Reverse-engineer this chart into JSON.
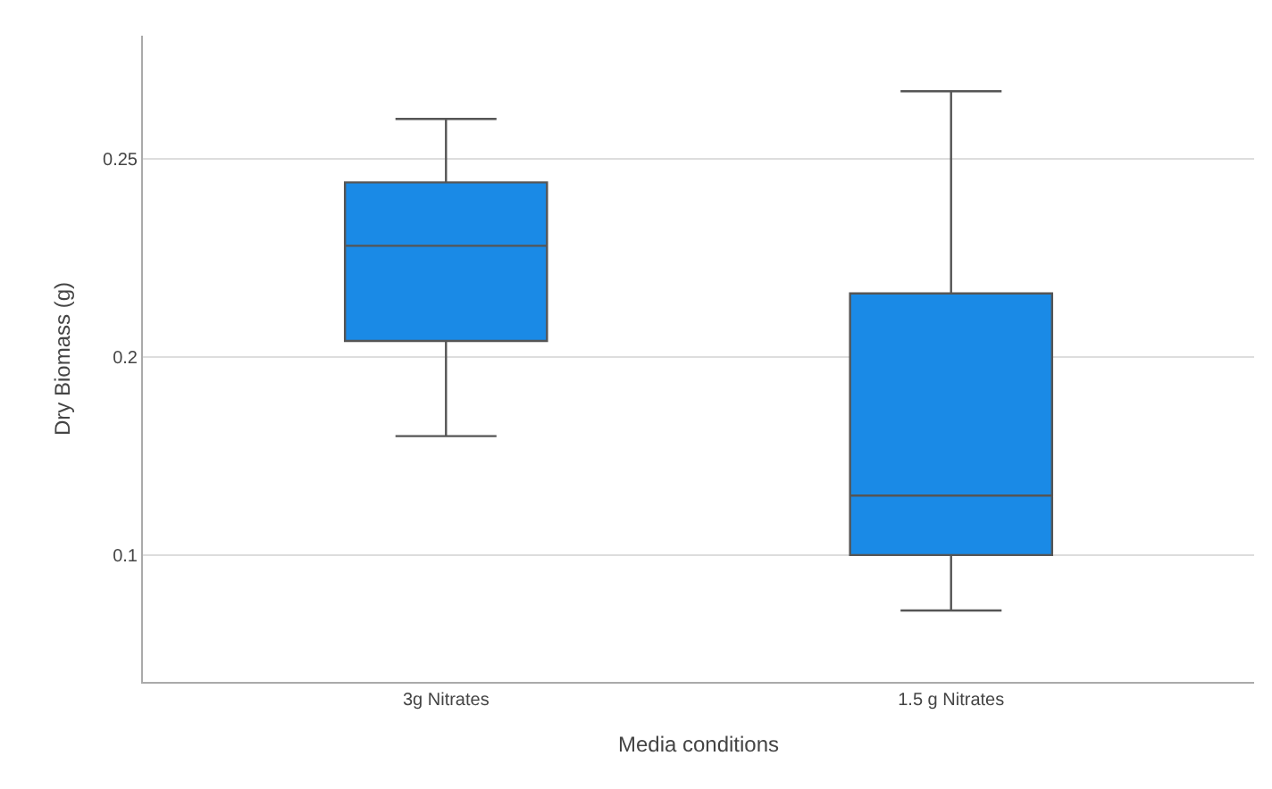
{
  "chart_data": {
    "type": "box",
    "xlabel": "Media conditions",
    "ylabel": "Dry Biomass (g)",
    "categories": [
      "3g Nitrates",
      "1.5 g Nitrates"
    ],
    "boxes": [
      {
        "low": 0.18,
        "q1": 0.204,
        "median": 0.228,
        "q3": 0.244,
        "high": 0.26
      },
      {
        "low": 0.136,
        "q1": 0.15,
        "median": 0.165,
        "q3": 0.216,
        "high": 0.267
      }
    ],
    "color": "#1a8ae6",
    "ylim": [
      0.118,
      0.281
    ],
    "yticks": [
      {
        "value": 0.15,
        "label": "0.1"
      },
      0.2,
      0.25
    ],
    "grid": "y",
    "legend": false
  }
}
